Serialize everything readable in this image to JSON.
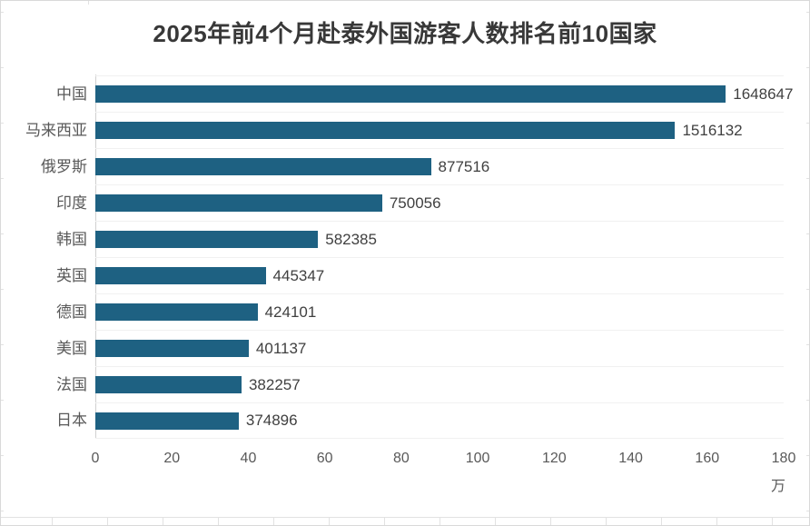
{
  "chart_data": {
    "type": "bar",
    "orientation": "horizontal",
    "title": "2025年前4个月赴泰外国游客人数排名前10国家",
    "categories": [
      "中国",
      "马来西亚",
      "俄罗斯",
      "印度",
      "韩国",
      "英国",
      "德国",
      "美国",
      "法国",
      "日本"
    ],
    "values": [
      1648647,
      1516132,
      877516,
      750056,
      582385,
      445347,
      424101,
      401137,
      382257,
      374896
    ],
    "value_labels": [
      "1648647",
      "1516132",
      "877516",
      "750056",
      "582385",
      "445347",
      "424101",
      "401137",
      "382257",
      "374896"
    ],
    "x_axis": {
      "tick_labels": [
        "0",
        "20",
        "40",
        "60",
        "80",
        "100",
        "120",
        "140",
        "160",
        "180"
      ],
      "tick_step_persons": 200000,
      "min": 0,
      "max": 1800000,
      "unit_label": "万",
      "unit_value": 10000
    },
    "legend": "none",
    "grid": "faint horizontal category boundary lines",
    "data_labels_shown": true
  },
  "colors": {
    "bar": "#1e6182",
    "title_text": "#383838",
    "category_text": "#595959",
    "value_text": "#404040",
    "tick_text": "#595959",
    "axis_line": "#d0d0d0",
    "gridline": "#f1f1f1",
    "frame": "#d9d9d9",
    "background": "#ffffff"
  }
}
